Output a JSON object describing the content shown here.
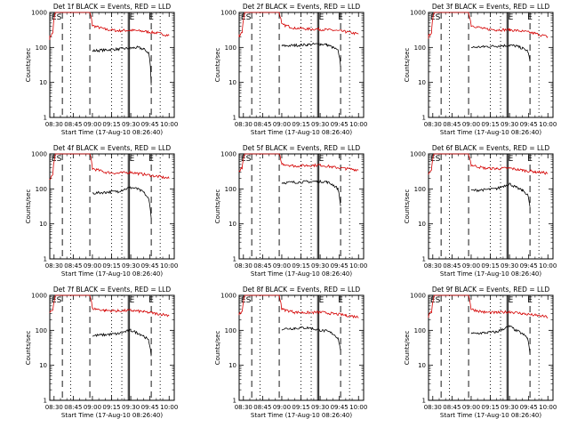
{
  "window": {
    "title": ""
  },
  "chart_data": [
    {
      "type": "line",
      "title": "Det 1f BLACK = Events, RED = LLD",
      "xlabel": "Start Time (17-Aug-10 08:26:40)",
      "ylabel": "Counts/sec",
      "xticks": [
        "08:30",
        "08:45",
        "09:00",
        "09:15",
        "09:30",
        "09:45",
        "10:00"
      ],
      "yticks": [
        "1",
        "10",
        "100",
        "1000"
      ],
      "ylim": [
        1,
        1000
      ],
      "yscale": "log",
      "markers": [
        "E",
        "S",
        "E",
        "E"
      ],
      "series": [
        {
          "name": "RED = LLD",
          "color": "#d40000",
          "x": [
            "08:26",
            "08:29",
            "08:31",
            "08:58",
            "09:00",
            "09:10",
            "09:20",
            "09:30",
            "09:40",
            "09:50",
            "10:00"
          ],
          "values": [
            180,
            260,
            1000,
            1000,
            420,
            330,
            300,
            310,
            290,
            260,
            220
          ]
        },
        {
          "name": "BLACK = Events",
          "color": "#000000",
          "x": [
            "09:00",
            "09:10",
            "09:20",
            "09:30",
            "09:35",
            "09:40",
            "09:44",
            "09:46"
          ],
          "values": [
            80,
            85,
            90,
            95,
            100,
            90,
            70,
            8
          ]
        }
      ]
    },
    {
      "type": "line",
      "title": "Det 2f BLACK = Events, RED = LLD",
      "xlabel": "Start Time (17-Aug-10 08:26:40)",
      "ylabel": "Counts/sec",
      "xticks": [
        "08:30",
        "08:45",
        "09:00",
        "09:15",
        "09:30",
        "09:45",
        "10:00"
      ],
      "yticks": [
        "1",
        "10",
        "100",
        "1000"
      ],
      "ylim": [
        1,
        1000
      ],
      "yscale": "log",
      "markers": [
        "E",
        "S",
        "E",
        "E"
      ],
      "series": [
        {
          "name": "RED = LLD",
          "color": "#d40000",
          "x": [
            "08:26",
            "08:29",
            "08:31",
            "08:58",
            "09:00",
            "09:10",
            "09:20",
            "09:30",
            "09:40",
            "09:50",
            "10:00"
          ],
          "values": [
            200,
            280,
            1000,
            1000,
            450,
            360,
            340,
            330,
            310,
            280,
            240
          ]
        },
        {
          "name": "BLACK = Events",
          "color": "#000000",
          "x": [
            "09:00",
            "09:10",
            "09:20",
            "09:30",
            "09:35",
            "09:40",
            "09:44",
            "09:46"
          ],
          "values": [
            110,
            115,
            120,
            125,
            120,
            100,
            80,
            30
          ]
        }
      ]
    },
    {
      "type": "line",
      "title": "Det 3f BLACK = Events, RED = LLD",
      "xlabel": "Start Time (17-Aug-10 08:26:40)",
      "ylabel": "Counts/sec",
      "xticks": [
        "08:30",
        "08:45",
        "09:00",
        "09:15",
        "09:30",
        "09:45",
        "10:00"
      ],
      "yticks": [
        "1",
        "10",
        "100",
        "1000"
      ],
      "ylim": [
        1,
        1000
      ],
      "yscale": "log",
      "markers": [
        "E",
        "S",
        "E",
        "E"
      ],
      "series": [
        {
          "name": "RED = LLD",
          "color": "#d40000",
          "x": [
            "08:26",
            "08:29",
            "08:31",
            "08:58",
            "09:00",
            "09:10",
            "09:20",
            "09:30",
            "09:40",
            "09:50",
            "10:00"
          ],
          "values": [
            190,
            270,
            1000,
            1000,
            430,
            340,
            320,
            320,
            290,
            250,
            200
          ]
        },
        {
          "name": "BLACK = Events",
          "color": "#000000",
          "x": [
            "09:00",
            "09:10",
            "09:20",
            "09:30",
            "09:35",
            "09:40",
            "09:44",
            "09:46"
          ],
          "values": [
            100,
            105,
            110,
            115,
            110,
            95,
            80,
            40
          ]
        }
      ]
    },
    {
      "type": "line",
      "title": "Det 4f BLACK = Events, RED = LLD",
      "xlabel": "Start Time (17-Aug-10 08:26:40)",
      "ylabel": "Counts/sec",
      "xticks": [
        "08:30",
        "08:45",
        "09:00",
        "09:15",
        "09:30",
        "09:45",
        "10:00"
      ],
      "yticks": [
        "1",
        "10",
        "100",
        "1000"
      ],
      "ylim": [
        1,
        1000
      ],
      "yscale": "log",
      "markers": [
        "E",
        "S",
        "E",
        "E"
      ],
      "series": [
        {
          "name": "RED = LLD",
          "color": "#d40000",
          "x": [
            "08:26",
            "08:29",
            "08:31",
            "08:58",
            "09:00",
            "09:10",
            "09:20",
            "09:30",
            "09:40",
            "09:50",
            "10:00"
          ],
          "values": [
            180,
            250,
            1000,
            1000,
            380,
            300,
            280,
            300,
            260,
            230,
            200
          ]
        },
        {
          "name": "BLACK = Events",
          "color": "#000000",
          "x": [
            "09:00",
            "09:10",
            "09:20",
            "09:30",
            "09:35",
            "09:40",
            "09:44",
            "09:46"
          ],
          "values": [
            75,
            80,
            85,
            110,
            100,
            80,
            50,
            15
          ]
        }
      ]
    },
    {
      "type": "line",
      "title": "Det 5f BLACK = Events, RED = LLD",
      "xlabel": "Start Time (17-Aug-10 08:26:40)",
      "ylabel": "Counts/sec",
      "xticks": [
        "08:30",
        "08:45",
        "09:00",
        "09:15",
        "09:30",
        "09:45",
        "10:00"
      ],
      "yticks": [
        "1",
        "10",
        "100",
        "1000"
      ],
      "ylim": [
        1,
        1000
      ],
      "yscale": "log",
      "markers": [
        "E",
        "S",
        "E"
      ],
      "series": [
        {
          "name": "RED = LLD",
          "color": "#d40000",
          "x": [
            "08:26",
            "08:29",
            "08:31",
            "08:58",
            "09:00",
            "09:10",
            "09:20",
            "09:30",
            "09:40",
            "09:50",
            "10:00"
          ],
          "values": [
            300,
            400,
            1000,
            1000,
            520,
            450,
            470,
            480,
            420,
            380,
            350
          ]
        },
        {
          "name": "BLACK = Events",
          "color": "#000000",
          "x": [
            "09:00",
            "09:10",
            "09:20",
            "09:30",
            "09:35",
            "09:40",
            "09:44",
            "09:46"
          ],
          "values": [
            150,
            155,
            160,
            165,
            160,
            130,
            100,
            30
          ]
        }
      ]
    },
    {
      "type": "line",
      "title": "Det 6f BLACK = Events, RED = LLD",
      "xlabel": "Start Time (17-Aug-10 08:26:40)",
      "ylabel": "Counts/sec",
      "xticks": [
        "08:30",
        "08:45",
        "09:00",
        "09:15",
        "09:30",
        "09:45",
        "10:00"
      ],
      "yticks": [
        "1",
        "10",
        "100",
        "1000"
      ],
      "ylim": [
        1,
        1000
      ],
      "yscale": "log",
      "markers": [
        "E",
        "S",
        "E",
        "E"
      ],
      "series": [
        {
          "name": "RED = LLD",
          "color": "#d40000",
          "x": [
            "08:26",
            "08:29",
            "08:31",
            "08:58",
            "09:00",
            "09:10",
            "09:20",
            "09:30",
            "09:40",
            "09:50",
            "10:00"
          ],
          "values": [
            250,
            350,
            1000,
            1000,
            480,
            390,
            380,
            390,
            340,
            310,
            280
          ]
        },
        {
          "name": "BLACK = Events",
          "color": "#000000",
          "x": [
            "09:00",
            "09:10",
            "09:20",
            "09:30",
            "09:35",
            "09:40",
            "09:44",
            "09:46"
          ],
          "values": [
            90,
            95,
            100,
            140,
            110,
            90,
            70,
            30
          ]
        }
      ]
    },
    {
      "type": "line",
      "title": "Det 7f BLACK = Events, RED = LLD",
      "xlabel": "Start Time (17-Aug-10 08:26:40)",
      "ylabel": "Counts/sec",
      "xticks": [
        "08:30",
        "08:45",
        "09:00",
        "09:15",
        "09:30",
        "09:45",
        "10:00"
      ],
      "yticks": [
        "1",
        "10",
        "100",
        "1000"
      ],
      "ylim": [
        1,
        1000
      ],
      "yscale": "log",
      "markers": [
        "E",
        "S",
        "E",
        "E"
      ],
      "series": [
        {
          "name": "RED = LLD",
          "color": "#d40000",
          "x": [
            "08:26",
            "08:29",
            "08:31",
            "08:58",
            "09:00",
            "09:10",
            "09:20",
            "09:30",
            "09:40",
            "09:50",
            "10:00"
          ],
          "values": [
            300,
            380,
            1000,
            1000,
            420,
            370,
            360,
            370,
            340,
            300,
            270
          ]
        },
        {
          "name": "BLACK = Events",
          "color": "#000000",
          "x": [
            "09:00",
            "09:10",
            "09:20",
            "09:30",
            "09:35",
            "09:40",
            "09:44",
            "09:46"
          ],
          "values": [
            70,
            75,
            80,
            100,
            85,
            70,
            50,
            20
          ]
        }
      ]
    },
    {
      "type": "line",
      "title": "Det 8f BLACK = Events, RED = LLD",
      "xlabel": "Start Time (17-Aug-10 08:26:40)",
      "ylabel": "Counts/sec",
      "xticks": [
        "08:30",
        "08:45",
        "09:00",
        "09:15",
        "09:30",
        "09:45",
        "10:00"
      ],
      "yticks": [
        "1",
        "10",
        "100",
        "1000"
      ],
      "ylim": [
        1,
        1000
      ],
      "yscale": "log",
      "markers": [
        "E",
        "S",
        "E",
        "E"
      ],
      "series": [
        {
          "name": "RED = LLD",
          "color": "#d40000",
          "x": [
            "08:26",
            "08:29",
            "08:31",
            "08:58",
            "09:00",
            "09:10",
            "09:20",
            "09:30",
            "09:40",
            "09:50",
            "10:00"
          ],
          "values": [
            260,
            350,
            1000,
            1000,
            400,
            330,
            320,
            330,
            300,
            270,
            240
          ]
        },
        {
          "name": "BLACK = Events",
          "color": "#000000",
          "x": [
            "09:00",
            "09:10",
            "09:20",
            "09:30",
            "09:35",
            "09:40",
            "09:44",
            "09:46"
          ],
          "values": [
            110,
            115,
            120,
            100,
            95,
            80,
            60,
            25
          ]
        }
      ]
    },
    {
      "type": "line",
      "title": "Det 9f BLACK = Events, RED = LLD",
      "xlabel": "Start Time (17-Aug-10 08:26:40)",
      "ylabel": "Counts/sec",
      "xticks": [
        "08:30",
        "08:45",
        "09:00",
        "09:15",
        "09:30",
        "09:45",
        "10:00"
      ],
      "yticks": [
        "1",
        "10",
        "100",
        "1000"
      ],
      "ylim": [
        1,
        1000
      ],
      "yscale": "log",
      "markers": [
        "E",
        "S",
        "E",
        "E"
      ],
      "series": [
        {
          "name": "RED = LLD",
          "color": "#d40000",
          "x": [
            "08:26",
            "08:29",
            "08:31",
            "08:58",
            "09:00",
            "09:10",
            "09:20",
            "09:30",
            "09:40",
            "09:50",
            "10:00"
          ],
          "values": [
            240,
            330,
            1000,
            1000,
            400,
            330,
            320,
            340,
            300,
            270,
            240
          ]
        },
        {
          "name": "BLACK = Events",
          "color": "#000000",
          "x": [
            "09:00",
            "09:10",
            "09:20",
            "09:30",
            "09:35",
            "09:40",
            "09:44",
            "09:46"
          ],
          "values": [
            80,
            85,
            90,
            130,
            100,
            80,
            60,
            20
          ]
        }
      ]
    }
  ]
}
